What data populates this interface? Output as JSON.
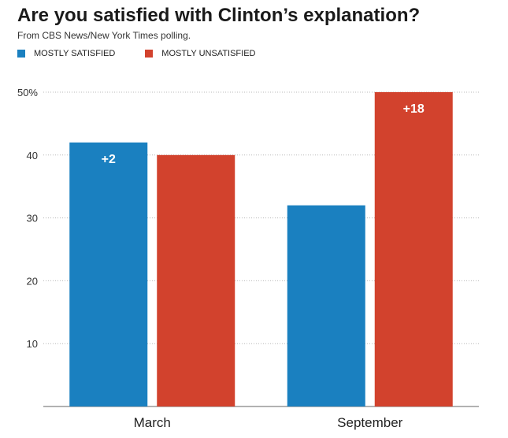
{
  "title": "Are you satisfied with Clinton’s explanation?",
  "subtitle": "From CBS News/New York Times polling.",
  "legend": [
    {
      "label": "MOSTLY SATISFIED",
      "color": "#1a80c0"
    },
    {
      "label": "MOSTLY UNSATISFIED",
      "color": "#d2422d"
    }
  ],
  "chart_data": {
    "type": "bar",
    "categories": [
      "March",
      "September"
    ],
    "series": [
      {
        "name": "MOSTLY SATISFIED",
        "values": [
          42,
          32
        ],
        "color": "#1a80c0"
      },
      {
        "name": "MOSTLY UNSATISFIED",
        "values": [
          40,
          50
        ],
        "color": "#d2422d"
      }
    ],
    "annotations": [
      {
        "category": "March",
        "series": "MOSTLY SATISFIED",
        "text": "+2"
      },
      {
        "category": "September",
        "series": "MOSTLY UNSATISFIED",
        "text": "+18"
      }
    ],
    "ylim": [
      0,
      50
    ],
    "yticks": [
      10,
      20,
      30,
      40,
      50
    ],
    "ytick_labels": [
      "10",
      "20",
      "30",
      "40",
      "50%"
    ],
    "xlabel": "",
    "ylabel": "",
    "grid": true,
    "legend_position": "top-left"
  }
}
